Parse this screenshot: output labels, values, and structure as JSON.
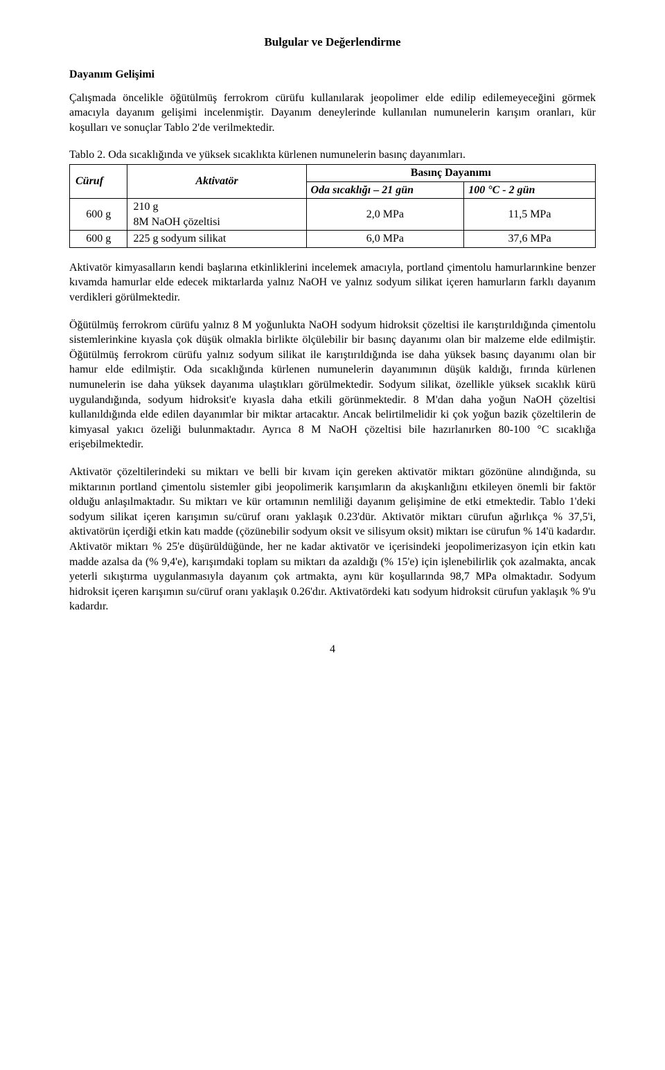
{
  "title": "Bulgular ve Değerlendirme",
  "section_heading": "Dayanım Gelişimi",
  "para1": "Çalışmada öncelikle öğütülmüş ferrokrom cürüfu kullanılarak jeopolimer elde edilip edilemeyeceğini görmek amacıyla dayanım gelişimi incelenmiştir. Dayanım deneylerinde kullanılan numunelerin karışım oranları, kür koşulları ve sonuçlar Tablo 2'de verilmektedir.",
  "table_caption": "Tablo 2. Oda sıcaklığında ve yüksek sıcaklıkta kürlenen numunelerin basınç dayanımları.",
  "table": {
    "header_span": "Basınç Dayanımı",
    "col_curuf": "Cüruf",
    "col_aktivator": "Aktivatör",
    "col_oda": "Oda sıcaklığı – 21 gün",
    "col_100c": "100 °C - 2 gün",
    "rows": [
      {
        "curuf": "600 g",
        "aktivator_line1": "210 g",
        "aktivator_line2": "8M NaOH çözeltisi",
        "oda": "2,0 MPa",
        "c100": "11,5 MPa"
      },
      {
        "curuf": "600 g",
        "aktivator": "225 g sodyum silikat",
        "oda": "6,0 MPa",
        "c100": "37,6 MPa"
      }
    ]
  },
  "para2": "Aktivatör kimyasalların kendi başlarına etkinliklerini incelemek amacıyla, portland çimentolu hamurlarınkine benzer kıvamda hamurlar elde edecek miktarlarda yalnız NaOH ve yalnız sodyum silikat içeren hamurların farklı dayanım verdikleri görülmektedir.",
  "para3": "Öğütülmüş ferrokrom cürüfu yalnız 8 M yoğunlukta NaOH sodyum hidroksit çözeltisi ile karıştırıldığında çimentolu sistemlerinkine kıyasla çok düşük olmakla birlikte ölçülebilir bir basınç dayanımı olan bir malzeme elde edilmiştir. Öğütülmüş ferrokrom cürüfu yalnız sodyum silikat ile karıştırıldığında ise daha yüksek basınç dayanımı olan bir hamur elde edilmiştir. Oda sıcaklığında kürlenen numunelerin dayanımının düşük kaldığı, fırında kürlenen numunelerin ise daha yüksek dayanıma ulaştıkları görülmektedir. Sodyum silikat, özellikle yüksek sıcaklık kürü uygulandığında, sodyum hidroksit'e kıyasla daha etkili görünmektedir. 8 M'dan daha yoğun NaOH çözeltisi kullanıldığında elde edilen dayanımlar bir miktar artacaktır. Ancak belirtilmelidir ki çok yoğun bazik çözeltilerin de kimyasal yakıcı özeliği bulunmaktadır. Ayrıca 8 M NaOH çözeltisi bile hazırlanırken 80-100 °C sıcaklığa erişebilmektedir.",
  "para4": "Aktivatör çözeltilerindeki su miktarı ve belli bir kıvam için gereken aktivatör miktarı gözönüne alındığında, su miktarının portland çimentolu sistemler gibi jeopolimerik karışımların da akışkanlığını etkileyen önemli bir faktör olduğu anlaşılmaktadır. Su miktarı ve kür ortamının nemliliği dayanım gelişimine de etki etmektedir. Tablo 1'deki sodyum silikat içeren karışımın su/cüruf oranı yaklaşık 0.23'dür. Aktivatör miktarı cürufun ağırlıkça % 37,5'i, aktivatörün içerdiği etkin katı madde (çözünebilir sodyum oksit ve silisyum oksit) miktarı ise cürufun % 14'ü kadardır. Aktivatör miktarı % 25'e düşürüldüğünde, her ne kadar aktivatör ve içerisindeki jeopolimerizasyon için etkin katı madde azalsa da (% 9,4'e), karışımdaki toplam su miktarı da azaldığı (% 15'e) için işlenebilirlik çok azalmakta, ancak yeterli sıkıştırma uygulanmasıyla dayanım çok artmakta, aynı kür koşullarında 98,7 MPa olmaktadır. Sodyum hidroksit içeren karışımın su/cüruf oranı yaklaşık 0.26'dır. Aktivatördeki katı sodyum hidroksit cürufun yaklaşık % 9'u kadardır.",
  "page_number": "4"
}
